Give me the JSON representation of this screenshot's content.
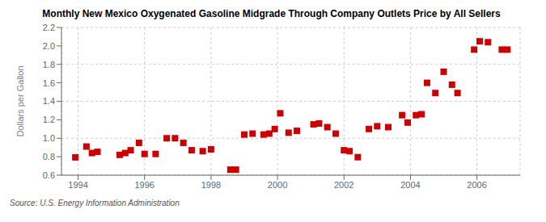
{
  "chart_data": {
    "type": "scatter",
    "title": "Monthly New Mexico Oxygenated Gasoline Midgrade Through Company Outlets Price by All Sellers",
    "y_label": "Dollars per Gallon",
    "annotations": [
      "Source: U.S. Energy Information Administration"
    ],
    "color": "#cc0000",
    "marker": "square",
    "grid": true,
    "xlim": [
      1993.5,
      2007.3
    ],
    "ylim": [
      0.6,
      2.2
    ],
    "xticks": [
      1994,
      1996,
      1998,
      2000,
      2002,
      2004,
      2006
    ],
    "yticks": [
      0.6,
      0.8,
      {
        "value": 1.0,
        "label": "1.0"
      },
      1.2,
      1.4,
      1.6,
      1.8,
      {
        "value": 2.0,
        "label": "2.0"
      },
      2.2
    ],
    "x": [
      1993.917,
      1994.25,
      1994.417,
      1994.583,
      1995.25,
      1995.417,
      1995.583,
      1995.833,
      1996.0,
      1996.333,
      1996.667,
      1996.917,
      1997.167,
      1997.417,
      1997.75,
      1998.0,
      1998.583,
      1998.75,
      1999.0,
      1999.25,
      1999.583,
      1999.75,
      1999.917,
      2000.083,
      2000.333,
      2000.583,
      2001.083,
      2001.25,
      2001.5,
      2001.75,
      2002.0,
      2002.167,
      2002.417,
      2002.75,
      2003.0,
      2003.333,
      2003.75,
      2003.917,
      2004.167,
      2004.333,
      2004.5,
      2004.75,
      2005.0,
      2005.25,
      2005.417,
      2005.917,
      2006.083,
      2006.333,
      2006.75,
      2006.917
    ],
    "values": [
      0.793,
      0.91,
      0.84,
      0.853,
      0.82,
      0.84,
      0.87,
      0.95,
      0.83,
      0.83,
      1.0,
      1.0,
      0.95,
      0.87,
      0.86,
      0.88,
      0.66,
      0.66,
      1.04,
      1.05,
      1.04,
      1.05,
      1.1,
      1.27,
      1.06,
      1.08,
      1.15,
      1.16,
      1.12,
      1.05,
      0.87,
      0.86,
      0.795,
      1.1,
      1.13,
      1.12,
      1.25,
      1.17,
      1.25,
      1.26,
      1.6,
      1.49,
      1.72,
      1.58,
      1.49,
      1.96,
      2.05,
      2.04,
      1.96,
      1.96
    ]
  }
}
